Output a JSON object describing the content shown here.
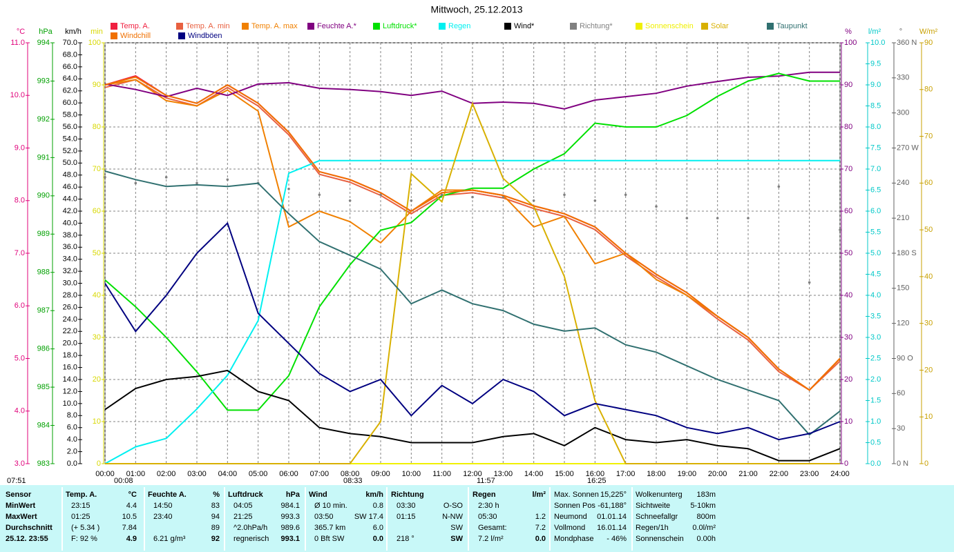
{
  "chart_data": {
    "type": "line",
    "title": "Mittwoch, 25.12.2013",
    "x": [
      0,
      1,
      2,
      3,
      4,
      5,
      6,
      7,
      8,
      9,
      10,
      11,
      12,
      13,
      14,
      15,
      16,
      17,
      18,
      19,
      20,
      21,
      22,
      23,
      24
    ],
    "xlim": [
      0,
      24
    ],
    "xticks": [
      {
        "value": 0,
        "label": "00:00"
      },
      {
        "value": 1,
        "label": "01:00"
      },
      {
        "value": 2,
        "label": "02:00"
      },
      {
        "value": 3,
        "label": "03:00"
      },
      {
        "value": 4,
        "label": "04:00"
      },
      {
        "value": 5,
        "label": "05:00"
      },
      {
        "value": 6,
        "label": "06:00"
      },
      {
        "value": 7,
        "label": "07:00"
      },
      {
        "value": 8,
        "label": "08:00"
      },
      {
        "value": 9,
        "label": "09:00"
      },
      {
        "value": 10,
        "label": "10:00"
      },
      {
        "value": 11,
        "label": "11:00"
      },
      {
        "value": 12,
        "label": "12:00"
      },
      {
        "value": 13,
        "label": "13:00"
      },
      {
        "value": 14,
        "label": "14:00"
      },
      {
        "value": 15,
        "label": "15:00"
      },
      {
        "value": 16,
        "label": "16:00"
      },
      {
        "value": 17,
        "label": "17:00"
      },
      {
        "value": 18,
        "label": "18:00"
      },
      {
        "value": 19,
        "label": "19:00"
      },
      {
        "value": 20,
        "label": "20:00"
      },
      {
        "value": 21,
        "label": "21:00"
      },
      {
        "value": 22,
        "label": "22:00"
      },
      {
        "value": 23,
        "label": "23:00"
      },
      {
        "value": 24,
        "label": "24:00"
      }
    ],
    "axes": [
      {
        "label": "°C",
        "side": "left",
        "color": "#e0007a",
        "lim": [
          3,
          11
        ],
        "ticks": [
          {
            "value": 3,
            "label": "3.0"
          },
          {
            "value": 4,
            "label": "4.0"
          },
          {
            "value": 5,
            "label": "5.0"
          },
          {
            "value": 6,
            "label": "6.0"
          },
          {
            "value": 7,
            "label": "7.0"
          },
          {
            "value": 8,
            "label": "8.0"
          },
          {
            "value": 9,
            "label": "9.0"
          },
          {
            "value": 10,
            "label": "10.0"
          },
          {
            "value": 11,
            "label": "11.0"
          }
        ]
      },
      {
        "label": "hPa",
        "side": "left",
        "color": "#00a000",
        "lim": [
          983,
          994
        ],
        "ticks": [
          983,
          984,
          985,
          986,
          987,
          988,
          989,
          990,
          991,
          992,
          993,
          994
        ]
      },
      {
        "label": "km/h",
        "side": "left",
        "color": "#000000",
        "lim": [
          0,
          70
        ],
        "ticks": [
          {
            "value": 0,
            "label": "0.0"
          },
          {
            "value": 2,
            "label": "2.0"
          },
          {
            "value": 4,
            "label": "4.0"
          },
          {
            "value": 6,
            "label": "6.0"
          },
          {
            "value": 8,
            "label": "8.0"
          },
          {
            "value": 10,
            "label": "10.0"
          },
          {
            "value": 12,
            "label": "12.0"
          },
          {
            "value": 14,
            "label": "14.0"
          },
          {
            "value": 16,
            "label": "16.0"
          },
          {
            "value": 18,
            "label": "18.0"
          },
          {
            "value": 20,
            "label": "20.0"
          },
          {
            "value": 22,
            "label": "22.0"
          },
          {
            "value": 24,
            "label": "24.0"
          },
          {
            "value": 26,
            "label": "26.0"
          },
          {
            "value": 28,
            "label": "28.0"
          },
          {
            "value": 30,
            "label": "30.0"
          },
          {
            "value": 32,
            "label": "32.0"
          },
          {
            "value": 34,
            "label": "34.0"
          },
          {
            "value": 36,
            "label": "36.0"
          },
          {
            "value": 38,
            "label": "38.0"
          },
          {
            "value": 40,
            "label": "40.0"
          },
          {
            "value": 42,
            "label": "42.0"
          },
          {
            "value": 44,
            "label": "44.0"
          },
          {
            "value": 46,
            "label": "46.0"
          },
          {
            "value": 48,
            "label": "48.0"
          },
          {
            "value": 50,
            "label": "50.0"
          },
          {
            "value": 52,
            "label": "52.0"
          },
          {
            "value": 54,
            "label": "54.0"
          },
          {
            "value": 56,
            "label": "56.0"
          },
          {
            "value": 58,
            "label": "58.0"
          },
          {
            "value": 60,
            "label": "60.0"
          },
          {
            "value": 62,
            "label": "62.0"
          },
          {
            "value": 64,
            "label": "64.0"
          },
          {
            "value": 66,
            "label": "66.0"
          },
          {
            "value": 68,
            "label": "68.0"
          },
          {
            "value": 70,
            "label": "70.0"
          }
        ]
      },
      {
        "label": "min",
        "side": "left",
        "color": "#d8d800",
        "lim": [
          0,
          100
        ],
        "ticks": [
          0,
          10,
          20,
          30,
          40,
          50,
          60,
          70,
          80,
          90,
          100
        ]
      },
      {
        "label": "%",
        "side": "right",
        "color": "#800080",
        "lim": [
          0,
          100
        ],
        "grid": true,
        "ticks": [
          0,
          10,
          20,
          30,
          40,
          50,
          60,
          70,
          80,
          90,
          100
        ]
      },
      {
        "label": "l/m²",
        "side": "right",
        "color": "#00c8c8",
        "lim": [
          0,
          10
        ],
        "ticks": [
          {
            "value": 0,
            "label": "0.0"
          },
          {
            "value": 0.5,
            "label": "0.5"
          },
          {
            "value": 1,
            "label": "1.0"
          },
          {
            "value": 1.5,
            "label": "1.5"
          },
          {
            "value": 2,
            "label": "2.0"
          },
          {
            "value": 2.5,
            "label": "2.5"
          },
          {
            "value": 3,
            "label": "3.0"
          },
          {
            "value": 3.5,
            "label": "3.5"
          },
          {
            "value": 4,
            "label": "4.0"
          },
          {
            "value": 4.5,
            "label": "4.5"
          },
          {
            "value": 5,
            "label": "5.0"
          },
          {
            "value": 5.5,
            "label": "5.5"
          },
          {
            "value": 6,
            "label": "6.0"
          },
          {
            "value": 6.5,
            "label": "6.5"
          },
          {
            "value": 7,
            "label": "7.0"
          },
          {
            "value": 7.5,
            "label": "7.5"
          },
          {
            "value": 8,
            "label": "8.0"
          },
          {
            "value": 8.5,
            "label": "8.5"
          },
          {
            "value": 9,
            "label": "9.0"
          },
          {
            "value": 9.5,
            "label": "9.5"
          },
          {
            "value": 10,
            "label": "10.0"
          }
        ]
      },
      {
        "label": "°",
        "side": "right",
        "color": "#606060",
        "lim": [
          0,
          360
        ],
        "ticks": [
          {
            "value": 0,
            "label": "0 N"
          },
          30,
          60,
          {
            "value": 90,
            "label": "90 O"
          },
          120,
          150,
          {
            "value": 180,
            "label": "180 S"
          },
          210,
          240,
          {
            "value": 270,
            "label": "270 W"
          },
          300,
          330,
          {
            "value": 360,
            "label": "360 N"
          }
        ]
      },
      {
        "label": "W/m²",
        "side": "right",
        "color": "#c8a000",
        "lim": [
          0,
          90
        ],
        "ticks": [
          0,
          10,
          20,
          30,
          40,
          50,
          60,
          70,
          80,
          90
        ]
      }
    ],
    "series": [
      {
        "name": "Temp. A.",
        "color": "#f02040",
        "axis": "°C",
        "values": [
          10.2,
          10.37,
          10.0,
          9.85,
          10.2,
          9.85,
          9.3,
          8.55,
          8.4,
          8.15,
          7.8,
          8.15,
          8.2,
          8.1,
          7.9,
          7.75,
          7.5,
          7.0,
          6.6,
          6.25,
          5.8,
          5.4,
          4.8,
          4.4,
          5.0
        ]
      },
      {
        "name": "Temp. A. min",
        "color": "#e86040",
        "axis": "°C",
        "values": [
          10.15,
          10.3,
          9.95,
          9.8,
          10.15,
          9.8,
          9.25,
          8.5,
          8.35,
          8.1,
          7.75,
          8.1,
          8.15,
          8.05,
          7.85,
          7.7,
          7.45,
          6.95,
          6.55,
          6.2,
          5.75,
          5.35,
          4.75,
          4.4,
          4.95
        ]
      },
      {
        "name": "Temp. A. max",
        "color": "#f08000",
        "axis": "°C",
        "values": [
          10.2,
          10.3,
          9.9,
          9.8,
          10.1,
          9.7,
          7.5,
          7.8,
          7.6,
          7.2,
          7.8,
          8.2,
          8.2,
          8.1,
          7.5,
          7.7,
          6.8,
          7.0,
          6.5,
          6.2,
          5.8,
          5.4,
          4.8,
          4.4,
          5.0
        ]
      },
      {
        "name": "Feuchte A.*",
        "color": "#800080",
        "axis": "%",
        "values": [
          90.2,
          88.9,
          87.2,
          89.2,
          87.5,
          90.2,
          90.5,
          89.2,
          88.9,
          88.4,
          87.5,
          88.5,
          85.6,
          85.9,
          85.6,
          84.3,
          86.4,
          87.2,
          88,
          89.7,
          90.8,
          91.8,
          92.1,
          93,
          93
        ]
      },
      {
        "name": "Luftdruck*",
        "color": "#00e000",
        "axis": "hPa",
        "values": [
          987.8,
          987.1,
          986.3,
          985.4,
          984.4,
          984.4,
          985.3,
          987.1,
          988.2,
          989.1,
          989.3,
          990.0,
          990.2,
          990.2,
          990.7,
          991.1,
          991.9,
          991.8,
          991.8,
          992.1,
          992.6,
          993.0,
          993.2,
          993.0,
          993.0
        ]
      },
      {
        "name": "Regen",
        "color": "#00f0f0",
        "axis": "l/m²",
        "values": [
          0,
          0.4,
          0.6,
          1.3,
          2.1,
          3.4,
          6.9,
          7.2,
          7.2,
          7.2,
          7.2,
          7.2,
          7.2,
          7.2,
          7.2,
          7.2,
          7.2,
          7.2,
          7.2,
          7.2,
          7.2,
          7.2,
          7.2,
          7.2,
          7.2
        ]
      },
      {
        "name": "Wind*",
        "color": "#000000",
        "axis": "km/h",
        "values": [
          9,
          12.5,
          14,
          14.5,
          15.5,
          12,
          10.5,
          6,
          5,
          4.5,
          3.5,
          3.5,
          3.5,
          4.5,
          5,
          3,
          6,
          4,
          3.5,
          4,
          3,
          2.5,
          0.5,
          0.5,
          2.5
        ]
      },
      {
        "name": "Richtung*",
        "color": "#808080",
        "axis": "°",
        "style": "dots",
        "values": [
          245,
          240,
          245,
          240,
          243,
          240,
          235,
          230,
          225,
          230,
          225,
          230,
          228,
          228,
          225,
          230,
          225,
          230,
          220,
          210,
          210,
          210,
          237,
          155,
          200
        ]
      },
      {
        "name": "Sonnenschein",
        "color": "#f0f000",
        "axis": "min",
        "values": [
          0,
          0,
          0,
          0,
          0,
          0,
          0,
          0,
          0,
          0,
          0,
          0,
          0,
          0,
          0,
          0,
          0,
          0,
          0,
          0,
          0,
          0,
          0,
          0,
          0
        ]
      },
      {
        "name": "Solar",
        "color": "#d8b000",
        "axis": "W/m²",
        "values": [
          0,
          0,
          0,
          0,
          0,
          0,
          0,
          0,
          0,
          9,
          62,
          56,
          77,
          61,
          55,
          40,
          13.5,
          0,
          0,
          0,
          0,
          0,
          0,
          0,
          0
        ]
      },
      {
        "name": "Taupunkt",
        "color": "#307070",
        "axis": "°C",
        "values": [
          8.56,
          8.4,
          8.27,
          8.3,
          8.27,
          8.33,
          7.75,
          7.22,
          6.96,
          6.7,
          6.04,
          6.3,
          6.04,
          5.91,
          5.65,
          5.52,
          5.58,
          5.26,
          5.12,
          4.86,
          4.6,
          4.4,
          4.2,
          3.55,
          4.0
        ]
      },
      {
        "name": "Windchill",
        "color": "#f07000",
        "axis": "°C",
        "values": [
          10.2,
          10.35,
          10.0,
          9.85,
          10.2,
          9.85,
          9.3,
          8.55,
          8.4,
          8.15,
          7.8,
          8.15,
          8.2,
          8.1,
          7.9,
          7.75,
          7.5,
          7.0,
          6.6,
          6.25,
          5.8,
          5.4,
          4.8,
          4.4,
          5.0
        ]
      },
      {
        "name": "Windböen",
        "color": "#000080",
        "axis": "km/h",
        "values": [
          30,
          22,
          28,
          35,
          40,
          25,
          20,
          15,
          12,
          14,
          8,
          13,
          10,
          14,
          12,
          8,
          10,
          9,
          8,
          6,
          5,
          6,
          4,
          5,
          7
        ]
      }
    ],
    "annotations": [
      "07:51",
      "00:08",
      "08:33",
      "11:57",
      "16:25"
    ]
  },
  "stats": {
    "panels": [
      {
        "title": "Sensor",
        "rows": [
          "MinWert",
          "MaxWert",
          "Durchschnitt",
          "25.12. 23:55"
        ]
      },
      {
        "title": "Temp. A.",
        "unit": "°C",
        "rows": [
          [
            "23:15",
            "4.4"
          ],
          [
            "01:25",
            "10.5"
          ],
          [
            "(+ 5.34 )",
            "7.84"
          ],
          [
            "F: 92 %",
            "4.9"
          ]
        ]
      },
      {
        "title": "Feuchte A.",
        "unit": "%",
        "rows": [
          [
            "14:50",
            "83"
          ],
          [
            "23:40",
            "94"
          ],
          [
            null,
            "89"
          ],
          [
            "6.21 g/m³",
            "92"
          ]
        ]
      },
      {
        "title": "Luftdruck",
        "unit": "hPa",
        "rows": [
          [
            "04:05",
            "984.1"
          ],
          [
            "21:25",
            "993.3"
          ],
          [
            "^2.0hPa/h",
            "989.6"
          ],
          [
            "regnerisch",
            "993.1"
          ]
        ]
      },
      {
        "title": "Wind",
        "unit": "km/h",
        "rows": [
          [
            "Ø 10 min.",
            "0.8"
          ],
          [
            "03:50",
            "SW 17.4"
          ],
          [
            "365.7 km",
            "6.0"
          ],
          [
            "0 Bft SW",
            "0.0"
          ]
        ]
      },
      {
        "title": "Richtung",
        "rows": [
          [
            "03:30",
            "O-SO"
          ],
          [
            "01:15",
            "N-NW"
          ],
          [
            null,
            "SW"
          ],
          [
            "218 °",
            "SW"
          ]
        ]
      },
      {
        "title": "Regen",
        "unit": "l/m²",
        "rows": [
          [
            "2:30 h",
            null
          ],
          [
            "05:30",
            "1.2"
          ],
          [
            "Gesamt:",
            "7.2"
          ],
          [
            "7.2 l/m²",
            "0.0"
          ]
        ]
      },
      {
        "rows": [
          [
            "Max. Sonnen",
            "15,225°"
          ],
          [
            "Sonnen Pos",
            "-61,188°"
          ],
          [
            "Neumond",
            "01.01.14"
          ],
          [
            "Vollmond",
            "16.01.14"
          ],
          [
            "Mondphase",
            "- 46%"
          ]
        ]
      },
      {
        "rows": [
          [
            "Wolkenunterg",
            "183m"
          ],
          [
            "Sichtweite",
            "5-10km"
          ],
          [
            "Schneefallgr",
            "800m"
          ],
          [
            "Regen/1h",
            "0.0l/m²"
          ],
          [
            "Sonnenschein",
            "0.00h"
          ]
        ]
      }
    ]
  }
}
